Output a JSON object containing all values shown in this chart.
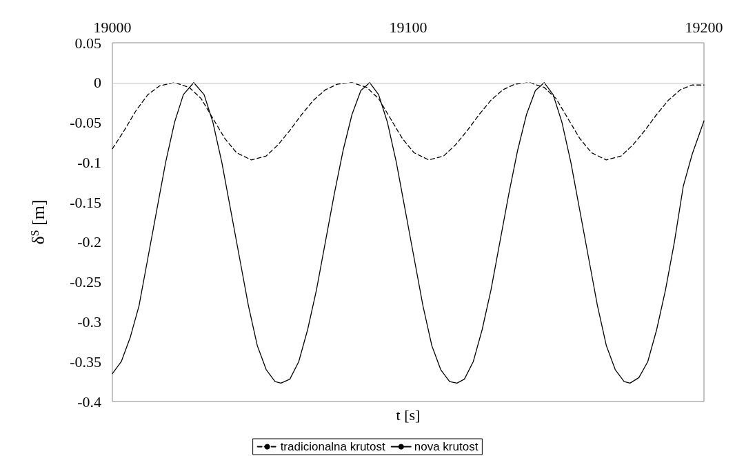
{
  "chart_data": {
    "type": "line",
    "xlabel": "t [s]",
    "ylabel": "δ$^{S}$ [m]",
    "xlim": [
      19000,
      19200
    ],
    "xticks": [
      19000,
      19100,
      19200
    ],
    "ylim": [
      -0.4,
      0.05
    ],
    "yticks": [
      -0.4,
      -0.35,
      -0.3,
      -0.25,
      -0.2,
      -0.15,
      -0.1,
      -0.05,
      0,
      0.05
    ],
    "grid": false,
    "legend": "bottom",
    "marker": "none",
    "ref_lines": [
      {
        "axis": "y",
        "value": 0,
        "color": "#c0c0c0"
      }
    ],
    "series": [
      {
        "name": "tradicionalna krutost",
        "color": "#000000",
        "line_style": "dashed",
        "x": [
          19000,
          19004,
          19008,
          19012,
          19016,
          19021,
          19026,
          19030,
          19034,
          19038,
          19042,
          19047,
          19052,
          19056,
          19060,
          19064,
          19068,
          19072,
          19076,
          19081,
          19086,
          19090,
          19094,
          19098,
          19102,
          19107,
          19112,
          19116,
          19120,
          19124,
          19128,
          19132,
          19136,
          19141,
          19146,
          19150,
          19154,
          19158,
          19162,
          19167,
          19172,
          19176,
          19180,
          19184,
          19188,
          19192,
          19196,
          19200
        ],
        "values": [
          -0.083,
          -0.06,
          -0.035,
          -0.015,
          -0.004,
          0,
          -0.006,
          -0.02,
          -0.045,
          -0.07,
          -0.088,
          -0.097,
          -0.092,
          -0.078,
          -0.06,
          -0.04,
          -0.022,
          -0.009,
          -0.002,
          0,
          -0.006,
          -0.02,
          -0.045,
          -0.07,
          -0.088,
          -0.097,
          -0.092,
          -0.078,
          -0.06,
          -0.04,
          -0.022,
          -0.009,
          -0.002,
          0,
          -0.006,
          -0.02,
          -0.045,
          -0.07,
          -0.088,
          -0.097,
          -0.092,
          -0.078,
          -0.06,
          -0.04,
          -0.022,
          -0.009,
          -0.003,
          -0.003
        ]
      },
      {
        "name": "nova krutost",
        "color": "#000000",
        "line_style": "solid",
        "x": [
          19000,
          19003,
          19006,
          19009,
          19012,
          19015,
          19018,
          19021,
          19024,
          19027.5,
          19031,
          19034,
          19037,
          19040,
          19043,
          19046,
          19049,
          19052,
          19055,
          19057,
          19060,
          19063,
          19066,
          19069,
          19072,
          19075,
          19078,
          19081,
          19084,
          19087,
          19090,
          19093,
          19096,
          19099,
          19102,
          19105,
          19108,
          19111,
          19114,
          19116.5,
          19119,
          19122,
          19125,
          19128,
          19131,
          19134,
          19137,
          19140,
          19143,
          19146,
          19149,
          19152,
          19155,
          19158,
          19161,
          19164,
          19167,
          19170,
          19173,
          19175,
          19178,
          19181,
          19184,
          19187,
          19190,
          19193,
          19196,
          19200
        ],
        "values": [
          -0.365,
          -0.35,
          -0.32,
          -0.28,
          -0.22,
          -0.16,
          -0.1,
          -0.05,
          -0.015,
          0,
          -0.015,
          -0.05,
          -0.1,
          -0.16,
          -0.22,
          -0.28,
          -0.33,
          -0.36,
          -0.375,
          -0.377,
          -0.372,
          -0.35,
          -0.31,
          -0.26,
          -0.2,
          -0.14,
          -0.085,
          -0.04,
          -0.01,
          0,
          -0.015,
          -0.05,
          -0.1,
          -0.16,
          -0.22,
          -0.28,
          -0.33,
          -0.36,
          -0.375,
          -0.377,
          -0.372,
          -0.35,
          -0.31,
          -0.26,
          -0.2,
          -0.14,
          -0.085,
          -0.04,
          -0.01,
          0,
          -0.015,
          -0.05,
          -0.1,
          -0.16,
          -0.22,
          -0.28,
          -0.33,
          -0.36,
          -0.375,
          -0.377,
          -0.37,
          -0.35,
          -0.31,
          -0.26,
          -0.2,
          -0.13,
          -0.09,
          -0.048
        ]
      }
    ]
  }
}
